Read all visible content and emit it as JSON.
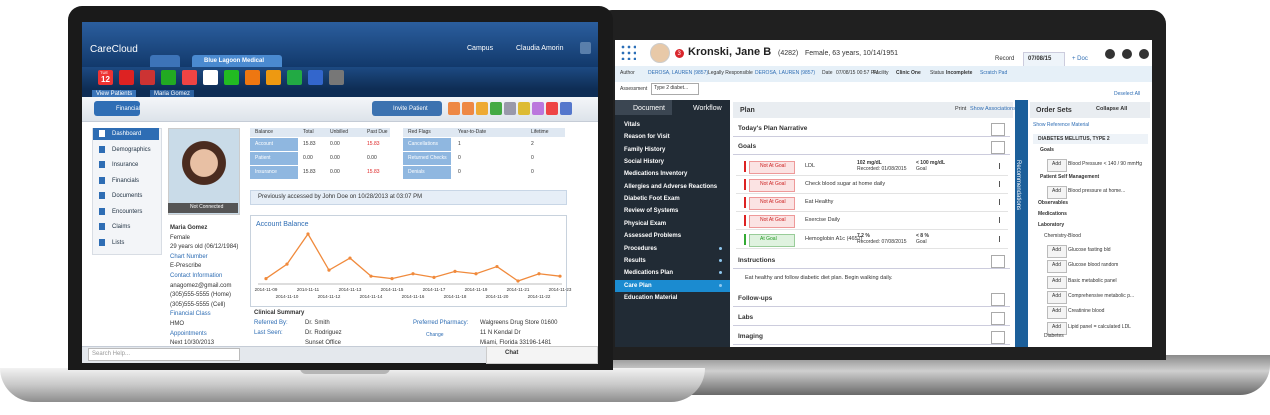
{
  "left_app": {
    "brand": "CareCloud",
    "practice": "Blue Lagoon Medical",
    "campus": "Campus",
    "user": "Claudia Amorin",
    "calendar_month": "TUE",
    "calendar_day": "12",
    "tabs": [
      "View Patients",
      "Maria Gomez"
    ],
    "financial_button": "Financial",
    "invite_button": "Invite Patient",
    "nav": [
      "Dashboard",
      "Demographics",
      "Insurance",
      "Financials",
      "Documents",
      "Encounters",
      "Claims",
      "Lists"
    ],
    "photo_status": "Not Connected",
    "patient_lines": [
      "Maria Gomez",
      "Female",
      "29 years old (06/12/1984)",
      "Chart Number",
      "E-Prescribe",
      "Contact Information",
      "anagomez@gmail.com",
      "(305)555-5555 (Home)",
      "(305)555-5555 (Cell)",
      "Financial Class",
      "HMO",
      "Appointments",
      "Next 10/30/2013"
    ],
    "balance_table": {
      "headers": [
        "Balance",
        "Total",
        "Unbilled",
        "Past Due"
      ],
      "rows": [
        [
          "Account",
          "15.83",
          "0.00",
          "15.83"
        ],
        [
          "Patient",
          "0.00",
          "0.00",
          "0.00"
        ],
        [
          "Insurance",
          "15.83",
          "0.00",
          "15.83"
        ]
      ]
    },
    "red_flags": {
      "headers": [
        "Red Flags",
        "Year-to-Date",
        "Lifetime"
      ],
      "rows": [
        [
          "Cancellations",
          "1",
          "2"
        ],
        [
          "Returned Checks",
          "0",
          "0"
        ],
        [
          "Denials",
          "0",
          "0"
        ]
      ]
    },
    "accessed": "Previously accessed by John Doe on 10/28/2013 at 03:07 PM",
    "account_balance": {
      "title": "Account Balance",
      "dates": [
        "2014-11-09",
        "2014-11-10",
        "2014-11-11",
        "2014-11-12",
        "2014-11-13",
        "2014-11-14",
        "2014-11-15",
        "2014-11-16",
        "2014-11-17",
        "2014-11-18",
        "2014-11-19",
        "2014-11-20",
        "2014-11-21",
        "2014-11-22",
        "2014-11-23"
      ],
      "values": [
        8,
        20,
        45,
        15,
        25,
        10,
        8,
        12,
        9,
        14,
        12,
        18,
        6,
        12,
        10
      ],
      "color": "#f08a3c"
    },
    "clinical_summary": {
      "title": "Clinical Summary",
      "referred_label": "Referred By:",
      "referred": "Dr. Smith",
      "seen_label": "Last Seen:",
      "seen": "Dr. Rodriguez",
      "office": "Sunset Office",
      "pharmacy_label": "Preferred Pharmacy:",
      "pharmacy": "Walgreens Drug Store 01600",
      "change": "Change",
      "address1": "11 N Kendal Dr",
      "address2": "Miami, Florida 33196-1481"
    },
    "search_placeholder": "Search Help...",
    "chat": "Chat"
  },
  "right_app": {
    "badge": "3",
    "patient_name": "Kronski, Jane B",
    "patient_id": "(4282)",
    "patient_info": "Female,  63 years, 10/14/1951",
    "record_tab": "Record",
    "date_tab": "07/08/15",
    "doc_tab": "+ Doc",
    "meta": [
      "Author",
      "DEROSA, LAUREN (9857)",
      "Legally Responsible",
      "DEROSA, LAUREN (9857)",
      "Date",
      "07/08/15 00:57 PM",
      "Facility",
      "Clinic One",
      "Status",
      "Incomplete",
      "Scratch Pad"
    ],
    "assessment_label": "Assessment",
    "assessment_value": "Type 2 diabet...",
    "deselect": "Deselect All",
    "side_tabs": [
      "Document",
      "Workflow"
    ],
    "side_items": [
      "Vitals",
      "Reason for Visit",
      "Family History",
      "Social History",
      "Medications Inventory",
      "Allergies and Adverse Reactions",
      "Diabetic Foot Exam",
      "Review of Systems",
      "Physical Exam",
      "Assessed Problems",
      "Procedures",
      "Results",
      "Medications Plan",
      "Care Plan",
      "Education Material"
    ],
    "plan_title": "Plan",
    "print": "Print",
    "show_associations": "Show Associations",
    "sections": [
      "Today's Plan Narrative",
      "Goals",
      "Instructions",
      "Follow-ups",
      "Labs",
      "Imaging"
    ],
    "goals": [
      {
        "status": "Not At Goal",
        "name": "LDL",
        "value": "102 mg/dL",
        "recorded": "Recorded: 01/08/2015",
        "target": "< 100 mg/dL",
        "target_note": "Goal"
      },
      {
        "status": "Not At Goal",
        "name": "Check blood sugar at home daily"
      },
      {
        "status": "Not At Goal",
        "name": "Eat Healthy"
      },
      {
        "status": "Not At Goal",
        "name": "Exercise Daily"
      },
      {
        "status": "At Goal",
        "name": "Hemoglobin A1c (4657)",
        "value": "7.2 %",
        "recorded": "Recorded: 07/08/2015",
        "target": "< 8 %",
        "target_note": "Goal"
      }
    ],
    "instruction": "Eat healthy and follow diabetic diet plan.  Begin walking daily.",
    "recommendations": "Recommendations",
    "order_sets": {
      "title": "Order Sets",
      "collapse": "Collapse All",
      "reference": "Show Reference Material",
      "set_name": "DIABETES MELLITUS, TYPE 2",
      "goals": "Goals",
      "goal_item": "Blood Pressure < 140 / 90 mmHg",
      "self_mgmt": "Patient Self Management",
      "self_item": "Blood pressure at home...",
      "observables": "Observables",
      "medications": "Medications",
      "laboratory": "Laboratory",
      "chemistry": "Chemistry-Blood",
      "add": "Add",
      "lab_items": [
        "Glucose fasting bld",
        "Glucose blood random",
        "Basic metabolic panel",
        "Comprehensive metabolic p...",
        "Creatinine blood",
        "Lipid panel = calculated LDL"
      ],
      "diabetes": "Diabetes"
    }
  }
}
